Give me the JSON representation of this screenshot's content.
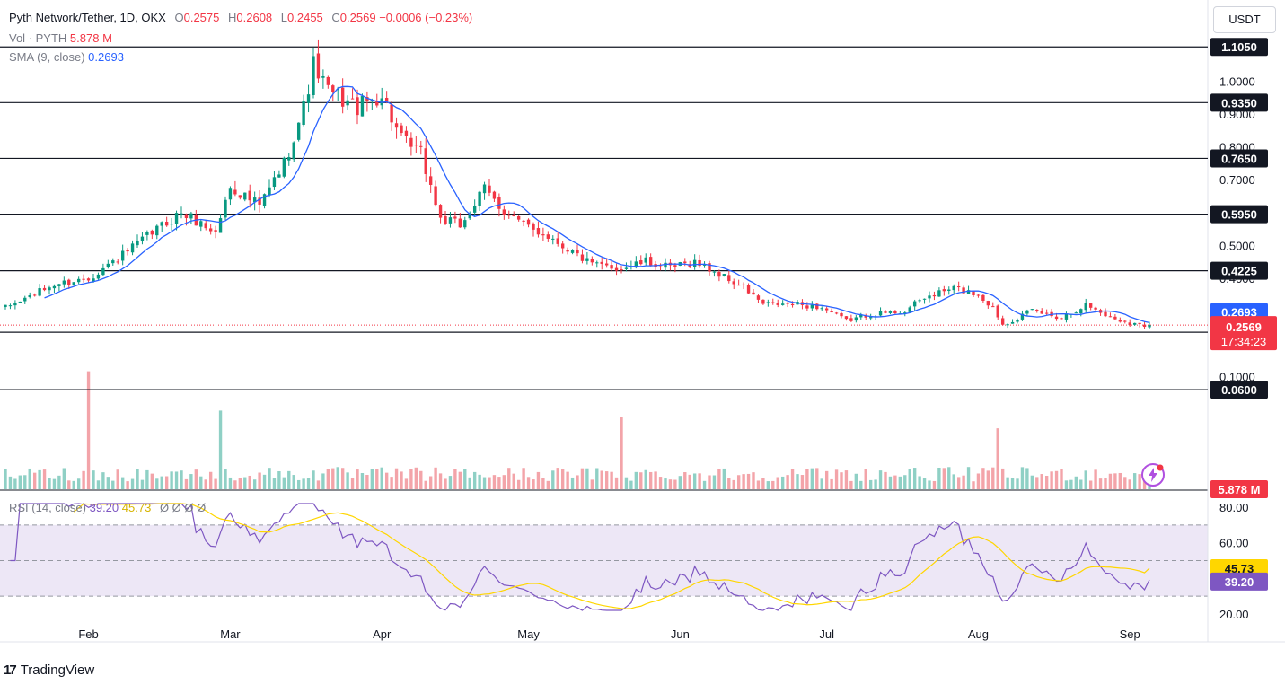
{
  "header": {
    "symbol": "Pyth Network/Tether, 1D, OKX",
    "o_label": "O",
    "o": "0.2575",
    "h_label": "H",
    "h": "0.2608",
    "l_label": "L",
    "l": "0.2455",
    "c_label": "C",
    "c": "0.2569",
    "change": "−0.0006 (−0.23%)",
    "vol_label": "Vol · PYTH",
    "vol": "5.878 M",
    "sma_label": "SMA (9, close)",
    "sma": "0.2693",
    "rsi_label": "RSI (14, close)",
    "rsi": "39.20",
    "rsi_ma": "45.73",
    "rsi_zero": "Ø Ø Ø Ø"
  },
  "currency": "USDT",
  "branding": "TradingView",
  "colors": {
    "up": "#089981",
    "down": "#f23645",
    "sma": "#2962ff",
    "rsi": "#7e57c2",
    "rsi_ma": "#ffd600",
    "rsi_band": "#ede7f6",
    "vol_up": "#8fd0c5",
    "vol_down": "#f3a4a9"
  },
  "price_axis_labels": [
    "1.0000",
    "0.9000",
    "0.8000",
    "0.7000",
    "0.5000",
    "0.4000",
    "0.1000"
  ],
  "rsi_axis_labels": [
    "80.00",
    "60.00",
    "20.00"
  ],
  "x_axis_labels": [
    "Feb",
    "Mar",
    "Apr",
    "May",
    "Jun",
    "Jul",
    "Aug",
    "Sep"
  ],
  "level_badges": [
    "1.1050",
    "0.9350",
    "0.7650",
    "0.5950",
    "0.4225",
    "0.2350",
    "0.0600"
  ],
  "sma_badge": "0.2693",
  "price_badge": {
    "price": "0.2569",
    "countdown": "17:34:23"
  },
  "vol_badge": "5.878 M",
  "rsi_badges": {
    "ma": "45.73",
    "rsi": "39.20"
  },
  "chart_data": {
    "type": "candlestick",
    "title": "Pyth Network/Tether, 1D, OKX",
    "x_range": [
      "2024-01-15",
      "2024-09-05"
    ],
    "y_range": [
      0.0,
      1.2
    ],
    "horizontal_levels": [
      1.105,
      0.935,
      0.765,
      0.595,
      0.4225,
      0.235,
      0.06
    ],
    "close_anchors": [
      [
        "2024-01-15",
        0.31
      ],
      [
        "2024-01-25",
        0.38
      ],
      [
        "2024-02-01",
        0.4
      ],
      [
        "2024-02-08",
        0.47
      ],
      [
        "2024-02-15",
        0.55
      ],
      [
        "2024-02-20",
        0.6
      ],
      [
        "2024-02-27",
        0.54
      ],
      [
        "2024-03-01",
        0.68
      ],
      [
        "2024-03-07",
        0.62
      ],
      [
        "2024-03-12",
        0.75
      ],
      [
        "2024-03-16",
        0.92
      ],
      [
        "2024-03-18",
        1.05
      ],
      [
        "2024-03-21",
        0.97
      ],
      [
        "2024-03-27",
        0.92
      ],
      [
        "2024-04-01",
        0.96
      ],
      [
        "2024-04-05",
        0.82
      ],
      [
        "2024-04-09",
        0.78
      ],
      [
        "2024-04-13",
        0.58
      ],
      [
        "2024-04-17",
        0.56
      ],
      [
        "2024-04-22",
        0.67
      ],
      [
        "2024-04-25",
        0.62
      ],
      [
        "2024-04-30",
        0.56
      ],
      [
        "2024-05-05",
        0.53
      ],
      [
        "2024-05-10",
        0.48
      ],
      [
        "2024-05-14",
        0.44
      ],
      [
        "2024-05-20",
        0.43
      ],
      [
        "2024-05-25",
        0.45
      ],
      [
        "2024-05-30",
        0.43
      ],
      [
        "2024-06-04",
        0.45
      ],
      [
        "2024-06-08",
        0.42
      ],
      [
        "2024-06-14",
        0.37
      ],
      [
        "2024-06-18",
        0.32
      ],
      [
        "2024-06-25",
        0.32
      ],
      [
        "2024-06-30",
        0.31
      ],
      [
        "2024-07-05",
        0.27
      ],
      [
        "2024-07-10",
        0.29
      ],
      [
        "2024-07-17",
        0.3
      ],
      [
        "2024-07-21",
        0.34
      ],
      [
        "2024-07-27",
        0.37
      ],
      [
        "2024-08-01",
        0.35
      ],
      [
        "2024-08-04",
        0.31
      ],
      [
        "2024-08-06",
        0.26
      ],
      [
        "2024-08-12",
        0.3
      ],
      [
        "2024-08-18",
        0.28
      ],
      [
        "2024-08-23",
        0.32
      ],
      [
        "2024-08-28",
        0.28
      ],
      [
        "2024-09-03",
        0.2569
      ]
    ],
    "sma_period": 9,
    "rsi_period": 14,
    "rsi_range": [
      20,
      80
    ],
    "rsi_band": [
      30,
      70
    ],
    "last_close": 0.2569,
    "last_sma": 0.2693,
    "last_rsi": 39.2,
    "last_rsi_ma": 45.73,
    "volume_peaks": [
      [
        "2024-02-01",
        18
      ],
      [
        "2024-02-28",
        12
      ],
      [
        "2024-05-20",
        11
      ],
      [
        "2024-08-05",
        9.3
      ]
    ],
    "grid": false,
    "legend_position": "top-left"
  }
}
